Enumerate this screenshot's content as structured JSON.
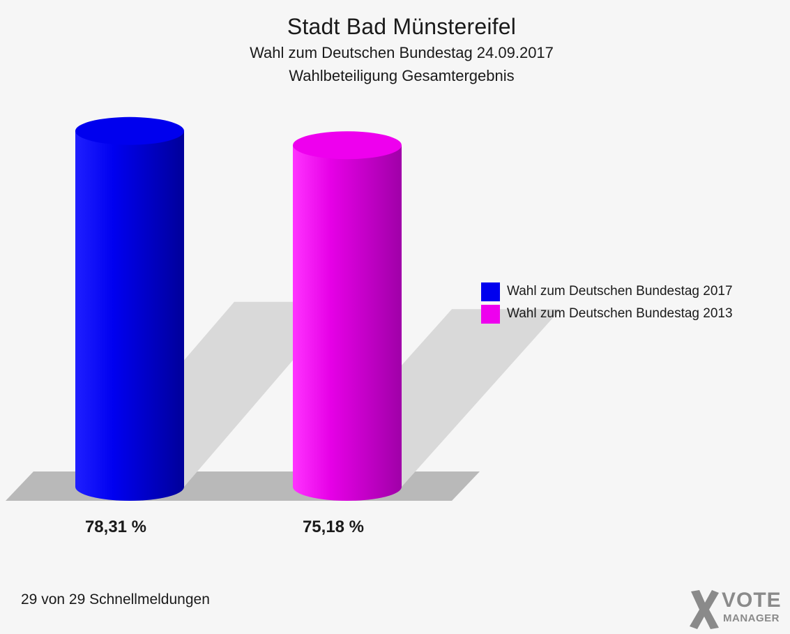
{
  "chart_data": {
    "type": "bar",
    "title": "Stadt Bad Münstereifel",
    "subtitle": "Wahl zum Deutschen Bundestag 24.09.2017",
    "subtitle2": "Wahlbeteiligung Gesamtergebnis",
    "categories": [
      "Wahl zum Deutschen Bundestag 2017",
      "Wahl zum Deutschen Bundestag 2013"
    ],
    "values": [
      78.31,
      75.18
    ],
    "value_labels": [
      "78,31 %",
      "75,18 %"
    ],
    "colors": [
      "#0000ee",
      "#ee00ee"
    ],
    "unit": "%",
    "ylim": [
      0,
      100
    ],
    "legend": "right",
    "grid": false
  },
  "footer": {
    "reports": "29 von 29 Schnellmeldungen"
  },
  "logo": {
    "line1": "VOTE",
    "line2": "MANAGER",
    "icon": "x-cross-icon"
  }
}
